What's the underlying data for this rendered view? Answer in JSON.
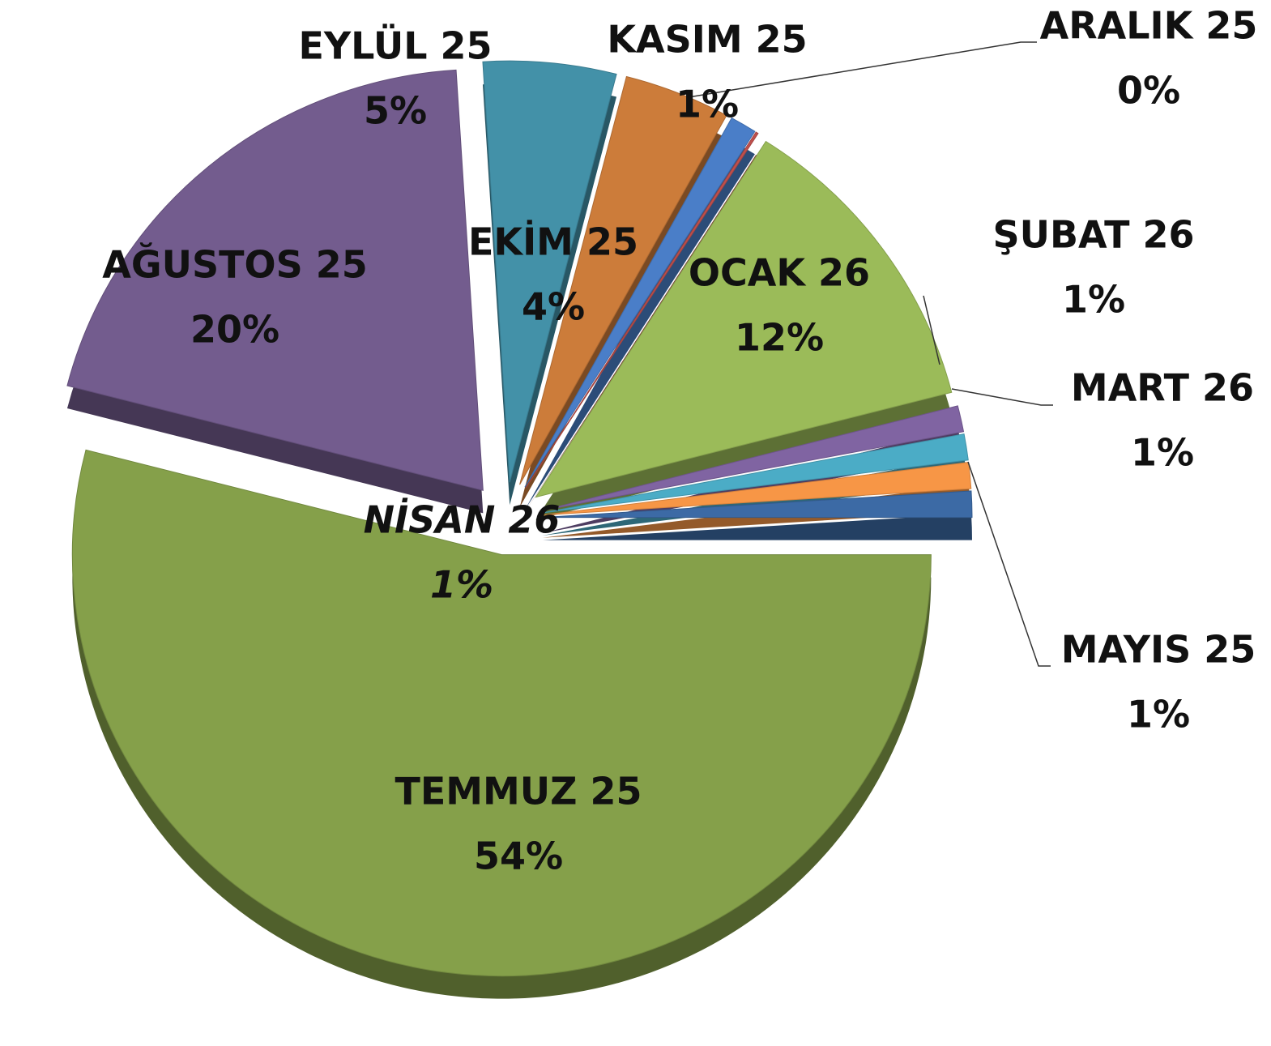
{
  "chart_data": {
    "type": "pie",
    "categories": [
      "MAYIS 25",
      "TEMMUZ 25",
      "AĞUSTOS 25",
      "EYLÜL 25",
      "EKİM 25",
      "KASIM 25",
      "ARALIK 25",
      "OCAK 26",
      "ŞUBAT 26",
      "MART 26",
      "NİSAN 26"
    ],
    "values": [
      1,
      54,
      20,
      5,
      4,
      1,
      0,
      12,
      1,
      1,
      1
    ],
    "value_labels": [
      "1%",
      "54%",
      "20%",
      "5%",
      "4%",
      "1%",
      "0%",
      "12%",
      "1%",
      "1%",
      "1%"
    ],
    "colors": [
      "#3c6aa5",
      "#85a04a",
      "#735c8e",
      "#4391a8",
      "#cc7c3a",
      "#4a7ec8",
      "#c0504d",
      "#9bbb59",
      "#8064a2",
      "#4bacc6",
      "#f79646"
    ]
  }
}
